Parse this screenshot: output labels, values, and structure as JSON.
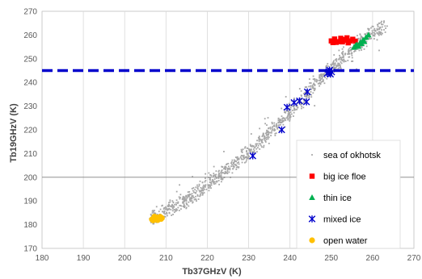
{
  "chart_data": {
    "type": "scatter",
    "xlabel": "Tb37GHzV (K)",
    "ylabel": "Tb19GHzV (K)",
    "xlim": [
      180,
      270
    ],
    "ylim": [
      170,
      270
    ],
    "x_ticks": [
      180,
      190,
      200,
      210,
      220,
      230,
      240,
      250,
      260,
      270
    ],
    "y_ticks": [
      170,
      180,
      190,
      200,
      210,
      220,
      230,
      240,
      250,
      260,
      270
    ],
    "grid": "vertical",
    "legend_position": "bottom-right",
    "reference_lines": [
      {
        "axis": "y",
        "value": 245,
        "style": "dashed",
        "color": "#0000CC"
      },
      {
        "axis": "y",
        "value": 200,
        "style": "solid",
        "color": "#808080"
      }
    ],
    "series": [
      {
        "name": "sea of okhotsk",
        "marker": "dot",
        "color": "#A6A6A6",
        "cloud": [
          [
            206.5,
            182.2
          ],
          [
            209,
            184.5
          ],
          [
            212,
            187.5
          ],
          [
            215,
            190.5
          ],
          [
            218,
            194
          ],
          [
            221,
            198
          ],
          [
            224,
            202
          ],
          [
            227,
            206
          ],
          [
            230,
            210.5
          ],
          [
            233,
            215
          ],
          [
            236,
            220
          ],
          [
            239,
            225.5
          ],
          [
            242,
            231
          ],
          [
            245,
            237
          ],
          [
            248,
            242.5
          ],
          [
            251,
            247.5
          ],
          [
            254,
            252
          ],
          [
            257,
            256.5
          ],
          [
            260,
            261
          ],
          [
            263,
            263.5
          ]
        ],
        "spread": 2.2
      },
      {
        "name": "big ice floe",
        "marker": "square",
        "color": "#FF0000",
        "points": [
          [
            250,
            257.5
          ],
          [
            250.8,
            258.3
          ],
          [
            251.5,
            257.2
          ],
          [
            252.3,
            258.6
          ],
          [
            253,
            257.8
          ],
          [
            253.8,
            258.8
          ],
          [
            254.5,
            257.5
          ],
          [
            255.2,
            258.2
          ],
          [
            251.2,
            256.9
          ],
          [
            252.7,
            257.1
          ],
          [
            253.4,
            258.1
          ],
          [
            254.1,
            256.7
          ],
          [
            255.8,
            257.4
          ],
          [
            250.4,
            256.8
          ]
        ]
      },
      {
        "name": "thin ice",
        "marker": "triangle",
        "color": "#00B050",
        "points": [
          [
            255.5,
            254.8
          ],
          [
            256.2,
            255.9
          ],
          [
            257,
            256.8
          ],
          [
            257.7,
            257.9
          ],
          [
            258.4,
            259
          ],
          [
            259,
            260
          ],
          [
            256.6,
            255.2
          ],
          [
            257.3,
            256.3
          ],
          [
            258,
            257.2
          ],
          [
            255.9,
            255.6
          ]
        ]
      },
      {
        "name": "mixed ice",
        "marker": "asterisk",
        "color": "#0000CC",
        "points": [
          [
            231,
            209
          ],
          [
            238,
            220
          ],
          [
            239.3,
            229.5
          ],
          [
            241,
            231.5
          ],
          [
            242.3,
            232.2
          ],
          [
            244,
            231.8
          ],
          [
            244.2,
            236
          ],
          [
            249,
            243.8
          ],
          [
            249.4,
            244.6
          ],
          [
            249.8,
            243.5
          ],
          [
            249.6,
            245.2
          ],
          [
            250.1,
            244.4
          ]
        ]
      },
      {
        "name": "open water",
        "marker": "circle",
        "color": "#FFC000",
        "points": [
          [
            206.6,
            182.2
          ],
          [
            207,
            182.6
          ],
          [
            207.4,
            182.1
          ],
          [
            207.8,
            183
          ],
          [
            208.2,
            182.5
          ],
          [
            208.6,
            183.3
          ],
          [
            209,
            182.8
          ],
          [
            207.2,
            183.4
          ],
          [
            206.9,
            181.8
          ],
          [
            208,
            181.9
          ],
          [
            208.8,
            182.4
          ],
          [
            207.6,
            183.1
          ]
        ]
      }
    ]
  }
}
